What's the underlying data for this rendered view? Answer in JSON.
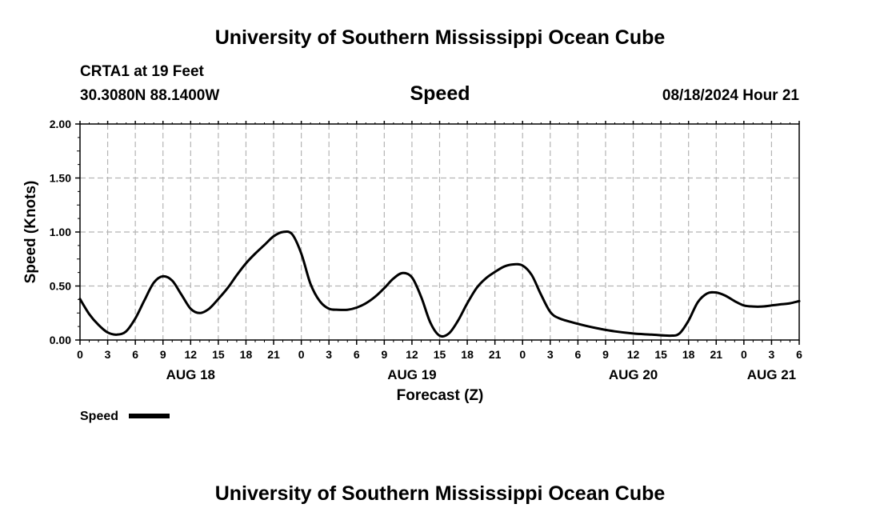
{
  "page": {
    "title_top": "University of Southern Mississippi Ocean Cube",
    "title_bottom": "University of Southern Mississippi Ocean Cube",
    "station": "CRTA1 at 19 Feet",
    "location": "30.3080N  88.1400W",
    "datetime": "08/18/2024 Hour 21"
  },
  "chart_data": {
    "type": "line",
    "title": "Speed",
    "xlabel": "Forecast (Z)",
    "ylabel": "Speed (Knots)",
    "units_x": "hours from 08/18 00Z",
    "xlim": [
      0,
      78
    ],
    "ylim": [
      0,
      2
    ],
    "grid": true,
    "legend_position": "bottom-left",
    "y_ticks": [
      {
        "value": 0,
        "label": "0.00"
      },
      {
        "value": 0.5,
        "label": "0.50"
      },
      {
        "value": 1.0,
        "label": "1.00"
      },
      {
        "value": 1.5,
        "label": "1.50"
      },
      {
        "value": 2.0,
        "label": "2.00"
      }
    ],
    "x_ticks": [
      {
        "value": 0,
        "label": "0"
      },
      {
        "value": 3,
        "label": "3"
      },
      {
        "value": 6,
        "label": "6"
      },
      {
        "value": 9,
        "label": "9"
      },
      {
        "value": 12,
        "label": "12"
      },
      {
        "value": 15,
        "label": "15"
      },
      {
        "value": 18,
        "label": "18"
      },
      {
        "value": 21,
        "label": "21"
      },
      {
        "value": 24,
        "label": "0"
      },
      {
        "value": 27,
        "label": "3"
      },
      {
        "value": 30,
        "label": "6"
      },
      {
        "value": 33,
        "label": "9"
      },
      {
        "value": 36,
        "label": "12"
      },
      {
        "value": 39,
        "label": "15"
      },
      {
        "value": 42,
        "label": "18"
      },
      {
        "value": 45,
        "label": "21"
      },
      {
        "value": 48,
        "label": "0"
      },
      {
        "value": 51,
        "label": "3"
      },
      {
        "value": 54,
        "label": "6"
      },
      {
        "value": 57,
        "label": "9"
      },
      {
        "value": 60,
        "label": "12"
      },
      {
        "value": 63,
        "label": "15"
      },
      {
        "value": 66,
        "label": "18"
      },
      {
        "value": 69,
        "label": "21"
      },
      {
        "value": 72,
        "label": "0"
      },
      {
        "value": 75,
        "label": "3"
      },
      {
        "value": 78,
        "label": "6"
      }
    ],
    "day_labels": [
      {
        "value": 12,
        "label": "AUG 18"
      },
      {
        "value": 36,
        "label": "AUG 19"
      },
      {
        "value": 60,
        "label": "AUG 20"
      },
      {
        "value": 75,
        "label": "AUG 21"
      }
    ],
    "series": [
      {
        "name": "Speed",
        "color": "#000000",
        "x": [
          0,
          1,
          2,
          3,
          4,
          5,
          6,
          7,
          8,
          9,
          10,
          11,
          12,
          13,
          14,
          15,
          16,
          17,
          18,
          19,
          20,
          21,
          22,
          23,
          24,
          25,
          26,
          27,
          28,
          29,
          30,
          31,
          32,
          33,
          34,
          35,
          36,
          37,
          38,
          39,
          40,
          41,
          42,
          43,
          44,
          45,
          46,
          47,
          48,
          49,
          50,
          51,
          52,
          54,
          56,
          58,
          60,
          62,
          64,
          65,
          66,
          67,
          68,
          69,
          70,
          71,
          72,
          73,
          74,
          75,
          76,
          77,
          78
        ],
        "y": [
          0.38,
          0.24,
          0.14,
          0.07,
          0.05,
          0.08,
          0.2,
          0.37,
          0.53,
          0.59,
          0.55,
          0.42,
          0.29,
          0.25,
          0.29,
          0.38,
          0.48,
          0.6,
          0.71,
          0.8,
          0.88,
          0.96,
          1.0,
          0.98,
          0.8,
          0.52,
          0.36,
          0.29,
          0.28,
          0.28,
          0.3,
          0.34,
          0.4,
          0.48,
          0.57,
          0.62,
          0.58,
          0.4,
          0.16,
          0.04,
          0.06,
          0.18,
          0.34,
          0.48,
          0.57,
          0.63,
          0.68,
          0.7,
          0.69,
          0.6,
          0.42,
          0.26,
          0.2,
          0.15,
          0.11,
          0.08,
          0.06,
          0.05,
          0.04,
          0.06,
          0.18,
          0.35,
          0.43,
          0.44,
          0.41,
          0.36,
          0.32,
          0.31,
          0.31,
          0.32,
          0.33,
          0.34,
          0.36
        ]
      }
    ]
  }
}
